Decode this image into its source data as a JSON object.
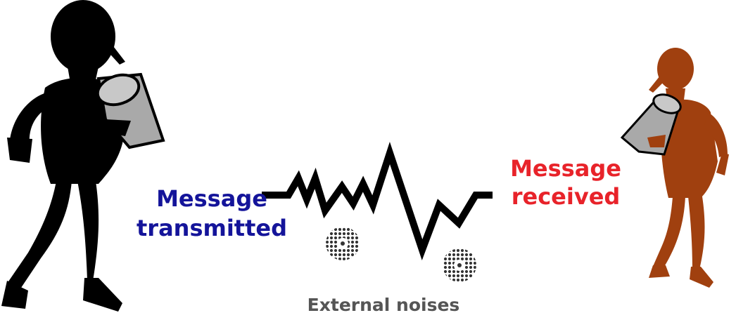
{
  "labels": {
    "sender_line1": "Message",
    "sender_line2": "transmitted",
    "receiver_line1": "Message",
    "receiver_line2": "received",
    "noise": "External noises"
  },
  "colors": {
    "sender_figure": "#000000",
    "receiver_figure": "#a0400f",
    "can": "#a9a9a9",
    "sender_text": "#14149a",
    "receiver_text": "#e8232a",
    "noise_text": "#555555"
  },
  "icons": [
    "sender-figure-icon",
    "receiver-figure-icon",
    "tin-can-icon",
    "zigzag-signal-icon",
    "noise-burst-icon"
  ]
}
